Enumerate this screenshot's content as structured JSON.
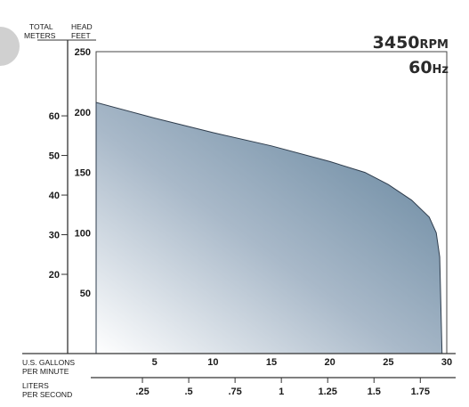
{
  "chart_data": {
    "type": "area",
    "speed_value": "3450",
    "speed_unit": "RPM",
    "freq_value": "60",
    "freq_unit": "Hz",
    "left_axis_title": [
      "TOTAL",
      "METERS"
    ],
    "head_axis_title": [
      "HEAD",
      "FEET"
    ],
    "bottom_axis_title": [
      "U.S. GALLONS",
      "PER MINUTE"
    ],
    "bottom2_axis_title": [
      "LITERS",
      "PER SECOND"
    ],
    "feet_ticks": [
      50,
      100,
      150,
      200,
      250
    ],
    "meter_ticks": [
      20,
      30,
      40,
      50,
      60
    ],
    "gpm_ticks": [
      5,
      10,
      15,
      20,
      25,
      30
    ],
    "lps_ticks": [
      ".25",
      ".5",
      ".75",
      "1",
      "1.25",
      "1.5",
      "1.75"
    ],
    "lps_values": [
      0.25,
      0.5,
      0.75,
      1,
      1.25,
      1.5,
      1.75
    ],
    "xlim": [
      0,
      30
    ],
    "ylim": [
      0,
      250
    ],
    "series": [
      {
        "x": [
          0,
          5,
          10,
          15,
          20,
          23,
          25,
          27,
          28.5,
          29.1,
          29.4,
          29.5,
          29.6
        ],
        "y": [
          208,
          195,
          183,
          172,
          159,
          150,
          140,
          127,
          113,
          100,
          80,
          40,
          0
        ]
      }
    ]
  }
}
